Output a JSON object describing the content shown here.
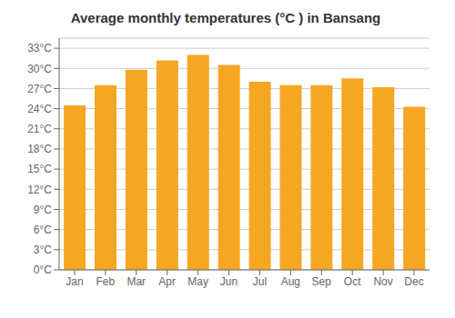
{
  "chart_data": {
    "type": "bar",
    "title": "Average monthly temperatures (°C ) in Bansang",
    "categories": [
      "Jan",
      "Feb",
      "Mar",
      "Apr",
      "May",
      "Jun",
      "Jul",
      "Aug",
      "Sep",
      "Oct",
      "Nov",
      "Dec"
    ],
    "values": [
      24.5,
      27.5,
      29.8,
      31.2,
      32.0,
      30.5,
      28.0,
      27.5,
      27.5,
      28.5,
      27.2,
      24.3
    ],
    "color": "#F5A623",
    "ylim": [
      0,
      34.5
    ],
    "yticks": [
      {
        "value": 0,
        "label": "0°C"
      },
      {
        "value": 3,
        "label": "3°C"
      },
      {
        "value": 6,
        "label": "6°C"
      },
      {
        "value": 9,
        "label": "9°C"
      },
      {
        "value": 12,
        "label": "12°C"
      },
      {
        "value": 15,
        "label": "15°C"
      },
      {
        "value": 18,
        "label": "18°C"
      },
      {
        "value": 21,
        "label": "21°C"
      },
      {
        "value": 24,
        "label": "24°C"
      },
      {
        "value": 27,
        "label": "27°C"
      },
      {
        "value": 30,
        "label": "30°C"
      },
      {
        "value": 33,
        "label": "33°C"
      }
    ],
    "grid": true
  }
}
